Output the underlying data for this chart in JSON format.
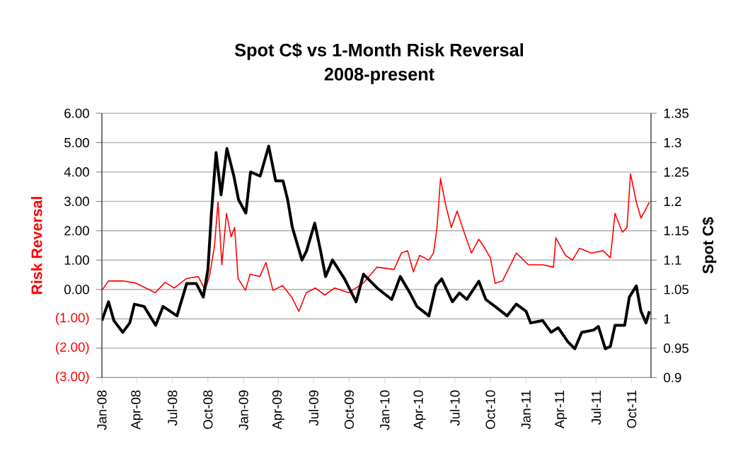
{
  "chart_data": {
    "type": "line",
    "title": "Spot C$ vs 1-Month Risk Reversal",
    "subtitle": "2008-present",
    "ylabel": "Risk Reversal",
    "y2label": "Spot C$",
    "xlim": [
      "2008-01-01",
      "2011-11-20"
    ],
    "xticks": [
      {
        "value": "2008-01-01",
        "label": "Jan-08"
      },
      {
        "value": "2008-04-01",
        "label": "Apr-08"
      },
      {
        "value": "2008-07-01",
        "label": "Jul-08"
      },
      {
        "value": "2008-10-01",
        "label": "Oct-08"
      },
      {
        "value": "2009-01-01",
        "label": "Jan-09"
      },
      {
        "value": "2009-04-01",
        "label": "Apr-09"
      },
      {
        "value": "2009-07-01",
        "label": "Jul-09"
      },
      {
        "value": "2009-10-01",
        "label": "Oct-09"
      },
      {
        "value": "2010-01-01",
        "label": "Jan-10"
      },
      {
        "value": "2010-04-01",
        "label": "Apr-10"
      },
      {
        "value": "2010-07-01",
        "label": "Jul-10"
      },
      {
        "value": "2010-10-01",
        "label": "Oct-10"
      },
      {
        "value": "2011-01-01",
        "label": "Jan-11"
      },
      {
        "value": "2011-04-01",
        "label": "Apr-11"
      },
      {
        "value": "2011-07-01",
        "label": "Jul-11"
      },
      {
        "value": "2011-10-01",
        "label": "Oct-11"
      }
    ],
    "ylim": [
      -3,
      6
    ],
    "yticks": [
      {
        "value": 6,
        "label": "6.00"
      },
      {
        "value": 5,
        "label": "5.00"
      },
      {
        "value": 4,
        "label": "4.00"
      },
      {
        "value": 3,
        "label": "3.00"
      },
      {
        "value": 2,
        "label": "2.00"
      },
      {
        "value": 1,
        "label": "1.00"
      },
      {
        "value": 0,
        "label": "0.00"
      },
      {
        "value": -1,
        "label": "(1.00)"
      },
      {
        "value": -2,
        "label": "(2.00)"
      },
      {
        "value": -3,
        "label": "(3.00)"
      }
    ],
    "y2lim": [
      0.9,
      1.35
    ],
    "y2ticks": [
      0.9,
      0.95,
      1,
      1.05,
      1.1,
      1.15,
      1.2,
      1.25,
      1.3,
      1.35
    ],
    "grid": "y",
    "marker": "none",
    "line_style": "solid",
    "series": [
      {
        "color": "#ff0000",
        "axis": "y",
        "x": [
          "2008-01-01",
          "2008-01-18",
          "2008-02-24",
          "2008-03-30",
          "2008-05-18",
          "2008-06-12",
          "2008-07-06",
          "2008-08-06",
          "2008-09-06",
          "2008-09-24",
          "2008-10-06",
          "2008-10-18",
          "2008-10-27",
          "2008-11-06",
          "2008-11-18",
          "2008-11-30",
          "2008-12-09",
          "2008-12-18",
          "2009-01-06",
          "2009-01-18",
          "2009-02-12",
          "2009-02-28",
          "2009-03-18",
          "2009-04-12",
          "2009-05-06",
          "2009-05-24",
          "2009-06-12",
          "2009-07-06",
          "2009-07-30",
          "2009-08-24",
          "2009-09-30",
          "2009-11-06",
          "2009-12-12",
          "2010-01-25",
          "2010-02-13",
          "2010-03-01",
          "2010-03-16",
          "2010-04-01",
          "2010-04-25",
          "2010-05-07",
          "2010-05-16",
          "2010-05-25",
          "2010-06-07",
          "2010-06-22",
          "2010-07-07",
          "2010-07-25",
          "2010-08-13",
          "2010-09-01",
          "2010-09-13",
          "2010-10-01",
          "2010-10-13",
          "2010-11-01",
          "2010-11-19",
          "2010-12-07",
          "2011-01-07",
          "2011-02-13",
          "2011-03-13",
          "2011-03-19",
          "2011-04-13",
          "2011-05-01",
          "2011-05-19",
          "2011-06-19",
          "2011-07-19",
          "2011-08-07",
          "2011-08-19",
          "2011-09-07",
          "2011-09-19",
          "2011-09-28",
          "2011-10-13",
          "2011-10-25",
          "2011-11-07",
          "2011-11-16"
        ],
        "values": [
          -0.03,
          0.29,
          0.29,
          0.21,
          -0.11,
          0.24,
          0.05,
          0.37,
          0.44,
          -0.03,
          0.52,
          1.48,
          2.98,
          0.84,
          2.59,
          1.79,
          2.11,
          0.37,
          -0.03,
          0.52,
          0.44,
          0.92,
          -0.03,
          0.13,
          -0.27,
          -0.75,
          -0.11,
          0.05,
          -0.19,
          0.05,
          -0.11,
          0.21,
          0.76,
          0.68,
          1.24,
          1.32,
          0.6,
          1.16,
          1.0,
          1.24,
          2.11,
          3.78,
          2.9,
          2.11,
          2.67,
          1.95,
          1.24,
          1.71,
          1.48,
          1.08,
          0.21,
          0.29,
          0.76,
          1.24,
          0.84,
          0.84,
          0.76,
          1.76,
          1.16,
          1.0,
          1.4,
          1.24,
          1.32,
          1.08,
          2.59,
          1.95,
          2.11,
          3.94,
          2.98,
          2.43,
          2.75,
          2.98
        ]
      },
      {
        "color": "#000000",
        "axis": "y2",
        "x": [
          "2008-01-01",
          "2008-01-18",
          "2008-02-01",
          "2008-02-24",
          "2008-03-13",
          "2008-03-25",
          "2008-04-19",
          "2008-05-19",
          "2008-06-07",
          "2008-07-13",
          "2008-08-07",
          "2008-09-01",
          "2008-09-19",
          "2008-10-01",
          "2008-10-10",
          "2008-10-22",
          "2008-11-04",
          "2008-11-19",
          "2008-12-07",
          "2008-12-19",
          "2009-01-07",
          "2009-01-19",
          "2009-02-13",
          "2009-03-07",
          "2009-03-25",
          "2009-04-13",
          "2009-04-25",
          "2009-05-07",
          "2009-06-01",
          "2009-06-13",
          "2009-07-04",
          "2009-07-19",
          "2009-08-01",
          "2009-08-19",
          "2009-09-19",
          "2009-10-19",
          "2009-11-07",
          "2009-12-13",
          "2010-01-19",
          "2010-02-10",
          "2010-03-07",
          "2010-03-25",
          "2010-04-25",
          "2010-05-13",
          "2010-05-28",
          "2010-06-25",
          "2010-07-13",
          "2010-08-01",
          "2010-09-01",
          "2010-09-19",
          "2010-10-13",
          "2010-11-13",
          "2010-12-07",
          "2011-01-01",
          "2011-01-13",
          "2011-02-13",
          "2011-03-07",
          "2011-03-25",
          "2011-04-19",
          "2011-05-07",
          "2011-05-25",
          "2011-06-25",
          "2011-07-07",
          "2011-07-25",
          "2011-08-07",
          "2011-08-19",
          "2011-09-13",
          "2011-09-25",
          "2011-10-13",
          "2011-10-25",
          "2011-11-07",
          "2011-11-16"
        ],
        "values": [
          0.997,
          1.029,
          0.997,
          0.977,
          0.993,
          1.025,
          1.021,
          0.989,
          1.021,
          1.005,
          1.06,
          1.06,
          1.037,
          1.084,
          1.18,
          1.283,
          1.211,
          1.29,
          1.243,
          1.203,
          1.18,
          1.25,
          1.243,
          1.294,
          1.235,
          1.235,
          1.203,
          1.156,
          1.1,
          1.116,
          1.163,
          1.116,
          1.072,
          1.1,
          1.068,
          1.029,
          1.076,
          1.052,
          1.033,
          1.072,
          1.044,
          1.021,
          1.005,
          1.056,
          1.068,
          1.029,
          1.044,
          1.033,
          1.064,
          1.033,
          1.021,
          1.005,
          1.025,
          1.013,
          0.993,
          0.997,
          0.977,
          0.985,
          0.961,
          0.949,
          0.977,
          0.981,
          0.987,
          0.949,
          0.953,
          0.989,
          0.989,
          1.037,
          1.056,
          1.013,
          0.993,
          1.013
        ]
      }
    ]
  }
}
